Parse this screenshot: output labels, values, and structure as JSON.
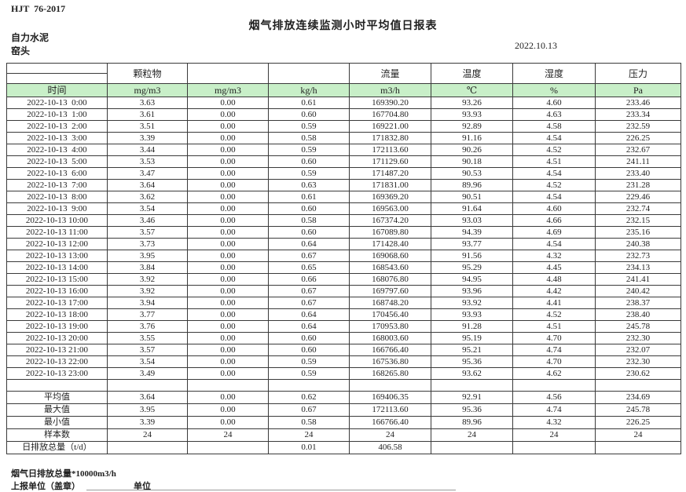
{
  "page": {
    "standard_code": "HJT  76-2017",
    "title": "烟气排放连续监测小时平均值日报表",
    "company": "自力水泥",
    "station": "窑头",
    "date": "2022.10.13"
  },
  "table": {
    "group_headers": [
      "",
      "颗粒物",
      "",
      "",
      "流量",
      "温度",
      "湿度",
      "压力"
    ],
    "units": [
      "时间",
      "mg/m3",
      "mg/m3",
      "kg/h",
      "m3/h",
      "℃",
      "%",
      "Pa"
    ],
    "hour_rows": [
      [
        "2022-10-13  0:00",
        "3.63",
        "0.00",
        "0.61",
        "169390.20",
        "93.26",
        "4.60",
        "233.46"
      ],
      [
        "2022-10-13  1:00",
        "3.61",
        "0.00",
        "0.60",
        "167704.80",
        "93.93",
        "4.63",
        "233.34"
      ],
      [
        "2022-10-13  2:00",
        "3.51",
        "0.00",
        "0.59",
        "169221.00",
        "92.89",
        "4.58",
        "232.59"
      ],
      [
        "2022-10-13  3:00",
        "3.39",
        "0.00",
        "0.58",
        "171832.80",
        "91.16",
        "4.54",
        "226.25"
      ],
      [
        "2022-10-13  4:00",
        "3.44",
        "0.00",
        "0.59",
        "172113.60",
        "90.26",
        "4.52",
        "232.67"
      ],
      [
        "2022-10-13  5:00",
        "3.53",
        "0.00",
        "0.60",
        "171129.60",
        "90.18",
        "4.51",
        "241.11"
      ],
      [
        "2022-10-13  6:00",
        "3.47",
        "0.00",
        "0.59",
        "171487.20",
        "90.53",
        "4.54",
        "233.40"
      ],
      [
        "2022-10-13  7:00",
        "3.64",
        "0.00",
        "0.63",
        "171831.00",
        "89.96",
        "4.52",
        "231.28"
      ],
      [
        "2022-10-13  8:00",
        "3.62",
        "0.00",
        "0.61",
        "169369.20",
        "90.51",
        "4.54",
        "229.46"
      ],
      [
        "2022-10-13  9:00",
        "3.54",
        "0.00",
        "0.60",
        "169563.00",
        "91.64",
        "4.60",
        "232.74"
      ],
      [
        "2022-10-13 10:00",
        "3.46",
        "0.00",
        "0.58",
        "167374.20",
        "93.03",
        "4.66",
        "232.15"
      ],
      [
        "2022-10-13 11:00",
        "3.57",
        "0.00",
        "0.60",
        "167089.80",
        "94.39",
        "4.69",
        "235.16"
      ],
      [
        "2022-10-13 12:00",
        "3.73",
        "0.00",
        "0.64",
        "171428.40",
        "93.77",
        "4.54",
        "240.38"
      ],
      [
        "2022-10-13 13:00",
        "3.95",
        "0.00",
        "0.67",
        "169068.60",
        "91.56",
        "4.32",
        "232.73"
      ],
      [
        "2022-10-13 14:00",
        "3.84",
        "0.00",
        "0.65",
        "168543.60",
        "95.29",
        "4.45",
        "234.13"
      ],
      [
        "2022-10-13 15:00",
        "3.92",
        "0.00",
        "0.66",
        "168076.80",
        "94.95",
        "4.48",
        "241.41"
      ],
      [
        "2022-10-13 16:00",
        "3.92",
        "0.00",
        "0.67",
        "169797.60",
        "93.96",
        "4.42",
        "240.42"
      ],
      [
        "2022-10-13 17:00",
        "3.94",
        "0.00",
        "0.67",
        "168748.20",
        "93.92",
        "4.41",
        "238.37"
      ],
      [
        "2022-10-13 18:00",
        "3.77",
        "0.00",
        "0.64",
        "170456.40",
        "93.93",
        "4.52",
        "238.40"
      ],
      [
        "2022-10-13 19:00",
        "3.76",
        "0.00",
        "0.64",
        "170953.80",
        "91.28",
        "4.51",
        "245.78"
      ],
      [
        "2022-10-13 20:00",
        "3.55",
        "0.00",
        "0.60",
        "168003.60",
        "95.19",
        "4.70",
        "232.30"
      ],
      [
        "2022-10-13 21:00",
        "3.57",
        "0.00",
        "0.60",
        "166766.40",
        "95.21",
        "4.74",
        "232.07"
      ],
      [
        "2022-10-13 22:00",
        "3.54",
        "0.00",
        "0.59",
        "167536.80",
        "95.36",
        "4.70",
        "232.30"
      ],
      [
        "2022-10-13 23:00",
        "3.49",
        "0.00",
        "0.59",
        "168265.80",
        "93.62",
        "4.62",
        "230.62"
      ]
    ],
    "summary_rows": [
      {
        "label": "平均值",
        "values": [
          "3.64",
          "0.00",
          "0.62",
          "169406.35",
          "92.91",
          "4.56",
          "234.69"
        ]
      },
      {
        "label": "最大值",
        "values": [
          "3.95",
          "0.00",
          "0.67",
          "172113.60",
          "95.36",
          "4.74",
          "245.78"
        ]
      },
      {
        "label": "最小值",
        "values": [
          "3.39",
          "0.00",
          "0.58",
          "166766.40",
          "89.96",
          "4.32",
          "226.25"
        ]
      },
      {
        "label": "样本数",
        "values": [
          "24",
          "24",
          "24",
          "24",
          "24",
          "24",
          "24"
        ]
      },
      {
        "label": "日排放总量（t/d）",
        "values": [
          "",
          "",
          "0.01",
          "406.58",
          "",
          "",
          ""
        ]
      }
    ]
  },
  "footer": {
    "note": "烟气日排放总量*10000m3/h",
    "report_unit": "上报单位（盖章）",
    "unit": "单位"
  },
  "colors": {
    "header_fill": "#c8efc8",
    "grid_line": "#3a3a3a"
  }
}
